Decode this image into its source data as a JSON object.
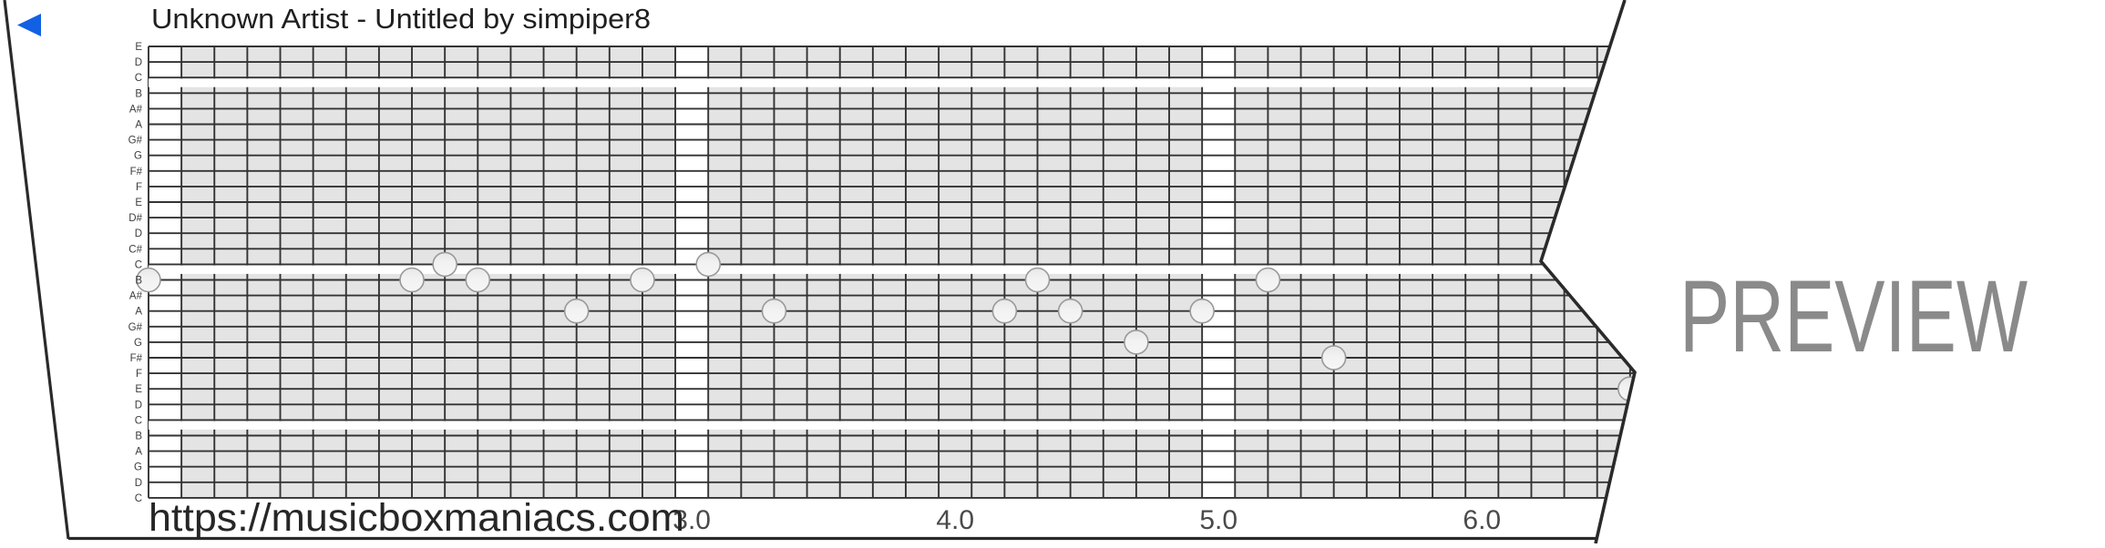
{
  "header": {
    "title": "Unknown Artist - Untitled by simpiper8",
    "back_icon_color": "#1261e4"
  },
  "footer": {
    "url": "https://musicboxmaniacs.com"
  },
  "watermark": {
    "label": "PREVIEW",
    "color": "#8a8a8a"
  },
  "strip": {
    "note_labels": [
      "E",
      "D",
      "C",
      "B",
      "A#",
      "A",
      "G#",
      "G",
      "F#",
      "F",
      "E",
      "D#",
      "D",
      "C#",
      "C",
      "B",
      "A#",
      "A",
      "G#",
      "G",
      "F#",
      "F",
      "E",
      "D",
      "C",
      "B",
      "A",
      "G",
      "D",
      "C"
    ],
    "octave_break_rows": [
      2,
      14,
      24
    ],
    "white_columns": [
      0,
      16,
      32
    ],
    "beat_labels": [
      {
        "text": "3.0",
        "col": 16.5
      },
      {
        "text": "4.0",
        "col": 24.5
      },
      {
        "text": "5.0",
        "col": 32.5
      },
      {
        "text": "6.0",
        "col": 40.5
      }
    ],
    "colors": {
      "cell": "#e4e4e4",
      "line": "#333333",
      "border": "#2a2a2a",
      "note_fill_top": "#e9e9e9",
      "note_fill_bottom": "#f5f5f5",
      "note_stroke": "#999999",
      "label_color": "#3c3c3c",
      "beat_color": "#4a4a4a"
    }
  },
  "chart_data": {
    "type": "scatter",
    "title": "Unknown Artist - Untitled by simpiper8",
    "xlabel_unit": "beats",
    "x_ticks": [
      "3.0",
      "4.0",
      "5.0",
      "6.0"
    ],
    "y_axis_labels_top_to_bottom": [
      "E",
      "D",
      "C",
      "B",
      "A#",
      "A",
      "G#",
      "G",
      "F#",
      "F",
      "E",
      "D#",
      "D",
      "C#",
      "C",
      "B",
      "A#",
      "A",
      "G#",
      "G",
      "F#",
      "F",
      "E",
      "D",
      "C",
      "B",
      "A",
      "G",
      "D",
      "C"
    ],
    "notes": [
      {
        "beat": 1.0,
        "row": 15,
        "pitch": "B"
      },
      {
        "beat": 2.0,
        "row": 15,
        "pitch": "B"
      },
      {
        "beat": 2.125,
        "row": 14,
        "pitch": "C"
      },
      {
        "beat": 2.25,
        "row": 15,
        "pitch": "B"
      },
      {
        "beat": 2.625,
        "row": 17,
        "pitch": "A"
      },
      {
        "beat": 2.875,
        "row": 15,
        "pitch": "B"
      },
      {
        "beat": 3.125,
        "row": 14,
        "pitch": "C"
      },
      {
        "beat": 3.375,
        "row": 17,
        "pitch": "A"
      },
      {
        "beat": 4.25,
        "row": 17,
        "pitch": "A"
      },
      {
        "beat": 4.375,
        "row": 15,
        "pitch": "B"
      },
      {
        "beat": 4.5,
        "row": 17,
        "pitch": "A"
      },
      {
        "beat": 4.75,
        "row": 19,
        "pitch": "G"
      },
      {
        "beat": 5.0,
        "row": 17,
        "pitch": "A"
      },
      {
        "beat": 5.25,
        "row": 15,
        "pitch": "B"
      },
      {
        "beat": 5.5,
        "row": 20,
        "pitch": "F#"
      },
      {
        "beat": 6.625,
        "row": 22,
        "pitch": "E"
      }
    ]
  }
}
